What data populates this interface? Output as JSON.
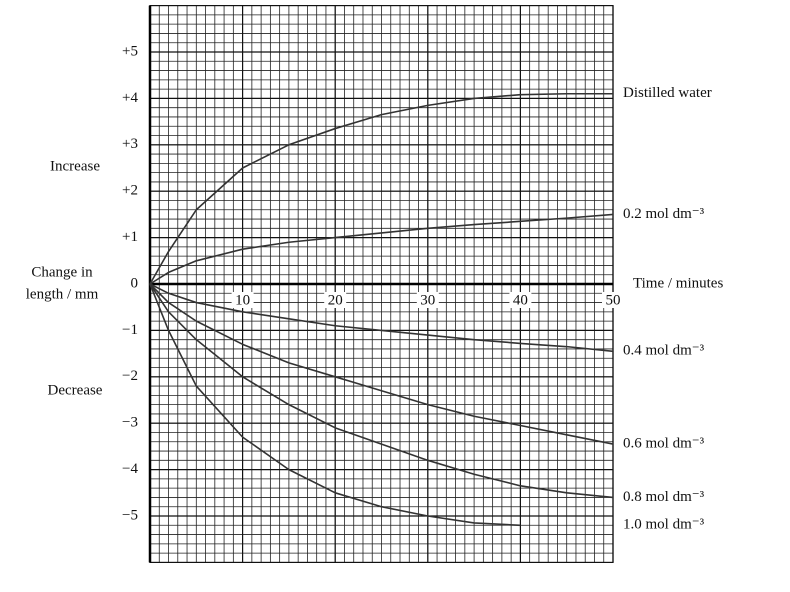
{
  "chart_data": {
    "type": "line",
    "y_label": [
      "Change in",
      "length / mm"
    ],
    "x_label": "Time / minutes",
    "annotations": [
      "Increase",
      "Decrease"
    ],
    "x": [
      0,
      2,
      5,
      10,
      15,
      20,
      25,
      30,
      35,
      40,
      45,
      50
    ],
    "series": [
      {
        "name": "Distilled water",
        "color": "#333333",
        "values": [
          0,
          0.7,
          1.6,
          2.5,
          3.0,
          3.35,
          3.65,
          3.85,
          4.0,
          4.08,
          4.1,
          4.1
        ]
      },
      {
        "name": "0.2 mol dm⁻³",
        "color": "#333333",
        "values": [
          0,
          0.25,
          0.5,
          0.75,
          0.9,
          1.0,
          1.1,
          1.2,
          1.28,
          1.35,
          1.42,
          1.5
        ]
      },
      {
        "name": "0.4 mol dm⁻³",
        "color": "#333333",
        "values": [
          0,
          -0.2,
          -0.4,
          -0.6,
          -0.75,
          -0.9,
          -1.0,
          -1.1,
          -1.2,
          -1.28,
          -1.35,
          -1.45
        ]
      },
      {
        "name": "0.6 mol dm⁻³",
        "color": "#333333",
        "values": [
          0,
          -0.4,
          -0.8,
          -1.3,
          -1.7,
          -2.0,
          -2.3,
          -2.6,
          -2.85,
          -3.05,
          -3.25,
          -3.45
        ]
      },
      {
        "name": "0.8 mol dm⁻³",
        "color": "#333333",
        "values": [
          0,
          -0.6,
          -1.2,
          -2.0,
          -2.6,
          -3.1,
          -3.45,
          -3.8,
          -4.1,
          -4.35,
          -4.5,
          -4.6
        ]
      },
      {
        "name": "1.0 mol dm⁻³",
        "color": "#333333",
        "values": [
          0,
          -1.0,
          -2.2,
          -3.3,
          -4.0,
          -4.5,
          -4.8,
          -5.0,
          -5.15,
          -5.2,
          null,
          null
        ]
      }
    ],
    "xlim": [
      0,
      50
    ],
    "ylim": [
      -6,
      6
    ],
    "xticks": [
      10,
      20,
      30,
      40,
      50
    ],
    "yticks": [
      {
        "value": 5,
        "label": "+5"
      },
      {
        "value": 4,
        "label": "+4"
      },
      {
        "value": 3,
        "label": "+3"
      },
      {
        "value": 2,
        "label": "+2"
      },
      {
        "value": 1,
        "label": "+1"
      },
      0,
      {
        "value": -1,
        "label": "−1"
      },
      {
        "value": -2,
        "label": "−2"
      },
      {
        "value": -3,
        "label": "−3"
      },
      {
        "value": -4,
        "label": "−4"
      },
      {
        "value": -5,
        "label": "−5"
      }
    ],
    "grid": true
  }
}
